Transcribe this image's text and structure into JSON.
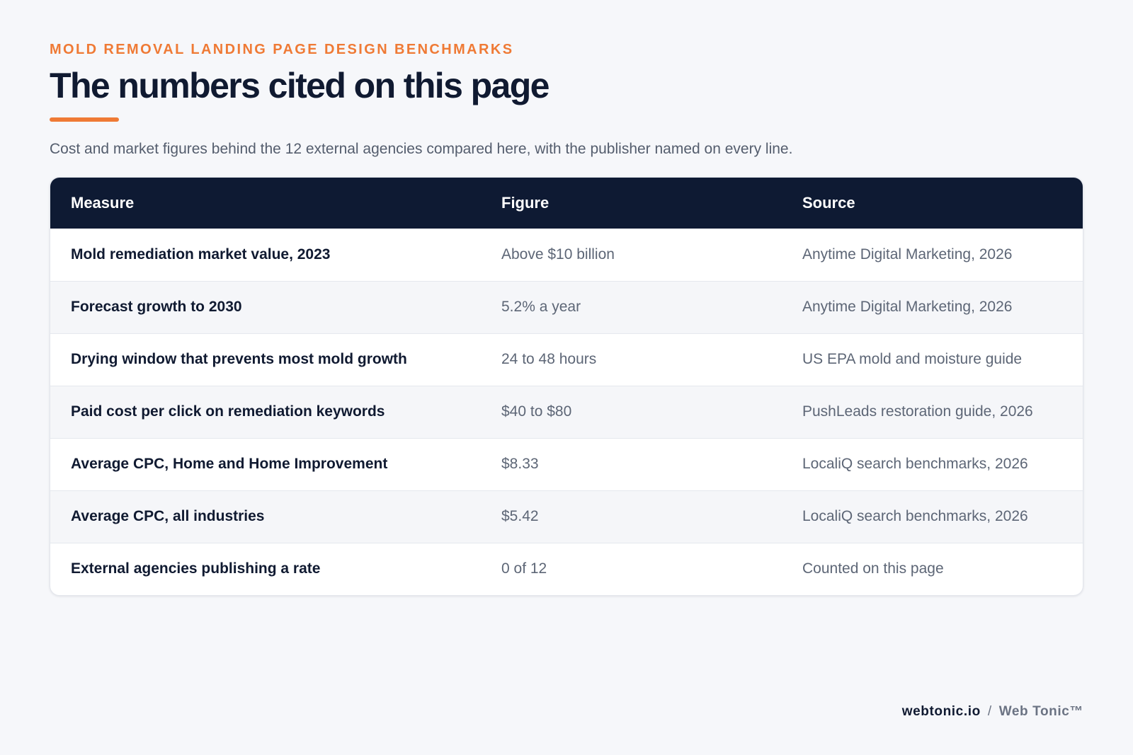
{
  "header": {
    "eyebrow": "MOLD REMOVAL LANDING PAGE DESIGN BENCHMARKS",
    "title": "The numbers cited on this page",
    "subtitle": "Cost and market figures behind the 12 external agencies compared here, with the publisher named on every line."
  },
  "table": {
    "columns": [
      "Measure",
      "Figure",
      "Source"
    ],
    "rows": [
      {
        "measure": "Mold remediation market value, 2023",
        "figure": "Above $10 billion",
        "source": "Anytime Digital Marketing, 2026"
      },
      {
        "measure": "Forecast growth to 2030",
        "figure": "5.2% a year",
        "source": "Anytime Digital Marketing, 2026"
      },
      {
        "measure": "Drying window that prevents most mold growth",
        "figure": "24 to 48 hours",
        "source": "US EPA mold and moisture guide"
      },
      {
        "measure": "Paid cost per click on remediation keywords",
        "figure": "$40 to $80",
        "source": "PushLeads restoration guide, 2026"
      },
      {
        "measure": "Average CPC, Home and Home Improvement",
        "figure": "$8.33",
        "source": "LocaliQ search benchmarks, 2026"
      },
      {
        "measure": "Average CPC, all industries",
        "figure": "$5.42",
        "source": "LocaliQ search benchmarks, 2026"
      },
      {
        "measure": "External agencies publishing a rate",
        "figure": "0 of 12",
        "source": "Counted on this page"
      }
    ]
  },
  "footer": {
    "domain": "webtonic.io",
    "separator": "/",
    "brand": "Web Tonic™"
  },
  "colors": {
    "accent": "#ef7a35",
    "header_bg": "#0e1a33",
    "page_bg": "#f6f7fa"
  }
}
